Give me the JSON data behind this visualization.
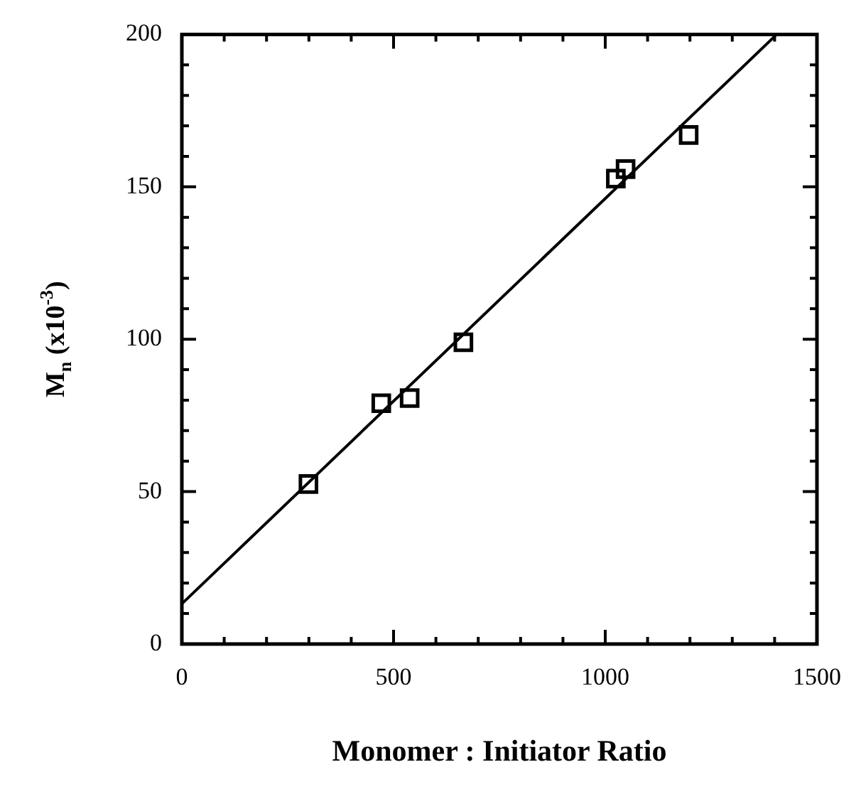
{
  "chart_data": {
    "type": "scatter",
    "xlabel": "Monomer : Initiator Ratio",
    "ylabel": "M$_{n}$ (x10$^{-3}$)",
    "xlim": [
      0,
      1500
    ],
    "ylim": [
      0,
      200
    ],
    "xticks": [
      0,
      {
        "value": 100,
        "label": null
      },
      {
        "value": 200,
        "label": null
      },
      {
        "value": 300,
        "label": null
      },
      {
        "value": 400,
        "label": null
      },
      500,
      {
        "value": 600,
        "label": null
      },
      {
        "value": 700,
        "label": null
      },
      {
        "value": 800,
        "label": null
      },
      {
        "value": 900,
        "label": null
      },
      1000,
      {
        "value": 1100,
        "label": null
      },
      {
        "value": 1200,
        "label": null
      },
      {
        "value": 1300,
        "label": null
      },
      {
        "value": 1400,
        "label": null
      },
      1500
    ],
    "yticks": [
      0,
      {
        "value": 10,
        "label": null
      },
      {
        "value": 20,
        "label": null
      },
      {
        "value": 30,
        "label": null
      },
      {
        "value": 40,
        "label": null
      },
      50,
      {
        "value": 60,
        "label": null
      },
      {
        "value": 70,
        "label": null
      },
      {
        "value": 80,
        "label": null
      },
      {
        "value": 90,
        "label": null
      },
      100,
      {
        "value": 110,
        "label": null
      },
      {
        "value": 120,
        "label": null
      },
      {
        "value": 130,
        "label": null
      },
      {
        "value": 140,
        "label": null
      },
      150,
      {
        "value": 160,
        "label": null
      },
      {
        "value": 170,
        "label": null
      },
      {
        "value": 180,
        "label": null
      },
      {
        "value": 190,
        "label": null
      },
      200
    ],
    "grid": false,
    "legend": false,
    "marker": "square",
    "series": [
      {
        "type": "scatter",
        "color": "#000000",
        "x": [
          299,
          471,
          538,
          665,
          1025,
          1048,
          1197
        ],
        "values": [
          52.5,
          79,
          80.7,
          99,
          152.7,
          155.8,
          167
        ]
      },
      {
        "type": "line",
        "color": "#000000",
        "marker": "none",
        "line_style": "solid",
        "x": [
          0,
          1405
        ],
        "values": [
          13.2,
          200
        ]
      }
    ]
  }
}
